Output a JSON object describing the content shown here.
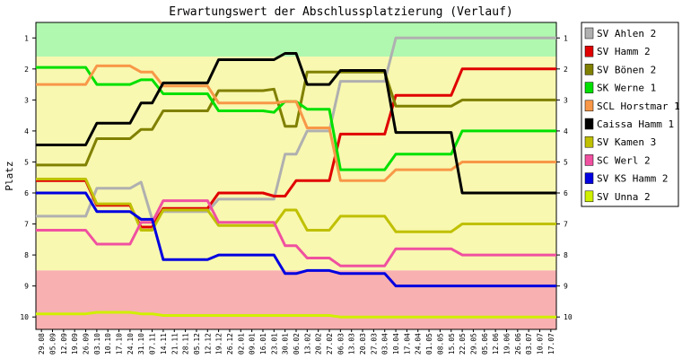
{
  "chart_data": {
    "type": "line",
    "title": "Erwartungswert der Abschlussplatzierung (Verlauf)",
    "ylabel": "Platz",
    "xlabel": "",
    "y_ticks": [
      1,
      2,
      3,
      4,
      5,
      6,
      7,
      8,
      9,
      10
    ],
    "ylim": [
      10.4,
      0.5
    ],
    "y_inverted": true,
    "grid": false,
    "legend_position": "right",
    "bands": [
      {
        "from": 0.5,
        "to": 1.6,
        "color": "#b0f8b0"
      },
      {
        "from": 1.6,
        "to": 8.5,
        "color": "#f8f8b0"
      },
      {
        "from": 8.5,
        "to": 10.4,
        "color": "#f8b0b0"
      }
    ],
    "categories": [
      "29.08",
      "05.09",
      "12.09",
      "19.09",
      "26.09",
      "03.10",
      "10.10",
      "17.10",
      "24.10",
      "31.10",
      "07.11",
      "14.11",
      "21.11",
      "28.11",
      "05.12",
      "12.12",
      "19.12",
      "26.12",
      "02.01",
      "09.01",
      "16.01",
      "23.01",
      "30.01",
      "06.02",
      "13.02",
      "20.02",
      "27.02",
      "06.03",
      "13.03",
      "20.03",
      "27.03",
      "03.04",
      "10.04",
      "17.04",
      "24.04",
      "01.05",
      "08.05",
      "15.05",
      "22.05",
      "29.05",
      "05.06",
      "12.06",
      "19.06",
      "26.06",
      "03.07",
      "10.07",
      "17.07"
    ],
    "series": [
      {
        "name": "SV Ahlen 2",
        "color": "#b0b0b0",
        "values": [
          6.75,
          6.75,
          6.75,
          6.75,
          6.75,
          5.85,
          5.85,
          5.85,
          5.85,
          5.65,
          6.85,
          6.6,
          6.6,
          6.6,
          6.6,
          6.6,
          6.2,
          6.2,
          6.2,
          6.2,
          6.2,
          6.2,
          4.75,
          4.75,
          4,
          4,
          4,
          2.4,
          2.4,
          2.4,
          2.4,
          2.4,
          1,
          1,
          1,
          1,
          1,
          1,
          1,
          1,
          1,
          1,
          1,
          1,
          1,
          1,
          1
        ]
      },
      {
        "name": "SV Hamm 2",
        "color": "#e00000",
        "values": [
          5.6,
          5.6,
          5.6,
          5.6,
          5.6,
          6.4,
          6.4,
          6.4,
          6.4,
          7.1,
          7.1,
          6.5,
          6.5,
          6.5,
          6.5,
          6.5,
          6,
          6,
          6,
          6,
          6,
          6.1,
          6.1,
          5.6,
          5.6,
          5.6,
          5.6,
          4.1,
          4.1,
          4.1,
          4.1,
          4.1,
          2.85,
          2.85,
          2.85,
          2.85,
          2.85,
          2.85,
          2,
          2,
          2,
          2,
          2,
          2,
          2,
          2,
          2
        ]
      },
      {
        "name": "SV Bönen 2",
        "color": "#808000",
        "values": [
          5.1,
          5.1,
          5.1,
          5.1,
          5.1,
          4.25,
          4.25,
          4.25,
          4.25,
          3.95,
          3.95,
          3.35,
          3.35,
          3.35,
          3.35,
          3.35,
          2.7,
          2.7,
          2.7,
          2.7,
          2.7,
          2.65,
          3.85,
          3.85,
          2.1,
          2.1,
          2.1,
          2.1,
          2.1,
          2.1,
          2.1,
          2.1,
          3.2,
          3.2,
          3.2,
          3.2,
          3.2,
          3.2,
          3,
          3,
          3,
          3,
          3,
          3,
          3,
          3,
          3
        ]
      },
      {
        "name": "SK Werne 1",
        "color": "#00e000",
        "values": [
          1.95,
          1.95,
          1.95,
          1.95,
          1.95,
          2.5,
          2.5,
          2.5,
          2.5,
          2.35,
          2.35,
          2.8,
          2.8,
          2.8,
          2.8,
          2.8,
          3.35,
          3.35,
          3.35,
          3.35,
          3.35,
          3.4,
          3.05,
          3.05,
          3.3,
          3.3,
          3.3,
          5.25,
          5.25,
          5.25,
          5.25,
          5.25,
          4.75,
          4.75,
          4.75,
          4.75,
          4.75,
          4.75,
          4,
          4,
          4,
          4,
          4,
          4,
          4,
          4,
          4
        ]
      },
      {
        "name": "SCL Horstmar 1",
        "color": "#f89848",
        "values": [
          2.5,
          2.5,
          2.5,
          2.5,
          2.5,
          1.9,
          1.9,
          1.9,
          1.9,
          2.1,
          2.1,
          2.55,
          2.55,
          2.55,
          2.55,
          2.55,
          3.1,
          3.1,
          3.1,
          3.1,
          3.1,
          3.1,
          3.05,
          3.05,
          3.9,
          3.9,
          3.9,
          5.6,
          5.6,
          5.6,
          5.6,
          5.6,
          5.25,
          5.25,
          5.25,
          5.25,
          5.25,
          5.25,
          5,
          5,
          5,
          5,
          5,
          5,
          5,
          5,
          5
        ]
      },
      {
        "name": "Caissa Hamm 1",
        "color": "#000000",
        "values": [
          4.45,
          4.45,
          4.45,
          4.45,
          4.45,
          3.75,
          3.75,
          3.75,
          3.75,
          3.1,
          3.1,
          2.45,
          2.45,
          2.45,
          2.45,
          2.45,
          1.7,
          1.7,
          1.7,
          1.7,
          1.7,
          1.7,
          1.5,
          1.5,
          2.5,
          2.5,
          2.5,
          2.05,
          2.05,
          2.05,
          2.05,
          2.05,
          4.05,
          4.05,
          4.05,
          4.05,
          4.05,
          4.05,
          6,
          6,
          6,
          6,
          6,
          6,
          6,
          6,
          6
        ]
      },
      {
        "name": "SV Kamen 3",
        "color": "#c0c000",
        "values": [
          5.55,
          5.55,
          5.55,
          5.55,
          5.55,
          6.35,
          6.35,
          6.35,
          6.35,
          7.2,
          7.2,
          6.55,
          6.55,
          6.55,
          6.55,
          6.55,
          7.05,
          7.05,
          7.05,
          7.05,
          7.05,
          7.05,
          6.55,
          6.55,
          7.2,
          7.2,
          7.2,
          6.75,
          6.75,
          6.75,
          6.75,
          6.75,
          7.25,
          7.25,
          7.25,
          7.25,
          7.25,
          7.25,
          7,
          7,
          7,
          7,
          7,
          7,
          7,
          7,
          7
        ]
      },
      {
        "name": "SC Werl 2",
        "color": "#f050a0",
        "values": [
          7.2,
          7.2,
          7.2,
          7.2,
          7.2,
          7.65,
          7.65,
          7.65,
          7.65,
          6.95,
          6.95,
          6.25,
          6.25,
          6.25,
          6.25,
          6.25,
          6.95,
          6.95,
          6.95,
          6.95,
          6.95,
          6.95,
          7.7,
          7.7,
          8.1,
          8.1,
          8.1,
          8.35,
          8.35,
          8.35,
          8.35,
          8.35,
          7.8,
          7.8,
          7.8,
          7.8,
          7.8,
          7.8,
          8,
          8,
          8,
          8,
          8,
          8,
          8,
          8,
          8
        ]
      },
      {
        "name": "SV KS Hamm 2",
        "color": "#0000e0",
        "values": [
          6,
          6,
          6,
          6,
          6,
          6.6,
          6.6,
          6.6,
          6.6,
          6.85,
          6.85,
          8.15,
          8.15,
          8.15,
          8.15,
          8.15,
          8,
          8,
          8,
          8,
          8,
          8,
          8.6,
          8.6,
          8.5,
          8.5,
          8.5,
          8.6,
          8.6,
          8.6,
          8.6,
          8.6,
          9,
          9,
          9,
          9,
          9,
          9,
          9,
          9,
          9,
          9,
          9,
          9,
          9,
          9,
          9
        ]
      },
      {
        "name": "SV Unna 2",
        "color": "#d0f000",
        "values": [
          9.9,
          9.9,
          9.9,
          9.9,
          9.9,
          9.85,
          9.85,
          9.85,
          9.85,
          9.9,
          9.9,
          9.95,
          9.95,
          9.95,
          9.95,
          9.95,
          9.95,
          9.95,
          9.95,
          9.95,
          9.95,
          9.95,
          9.95,
          9.95,
          9.95,
          9.95,
          9.95,
          10,
          10,
          10,
          10,
          10,
          10,
          10,
          10,
          10,
          10,
          10,
          10,
          10,
          10,
          10,
          10,
          10,
          10,
          10,
          10
        ]
      }
    ]
  }
}
